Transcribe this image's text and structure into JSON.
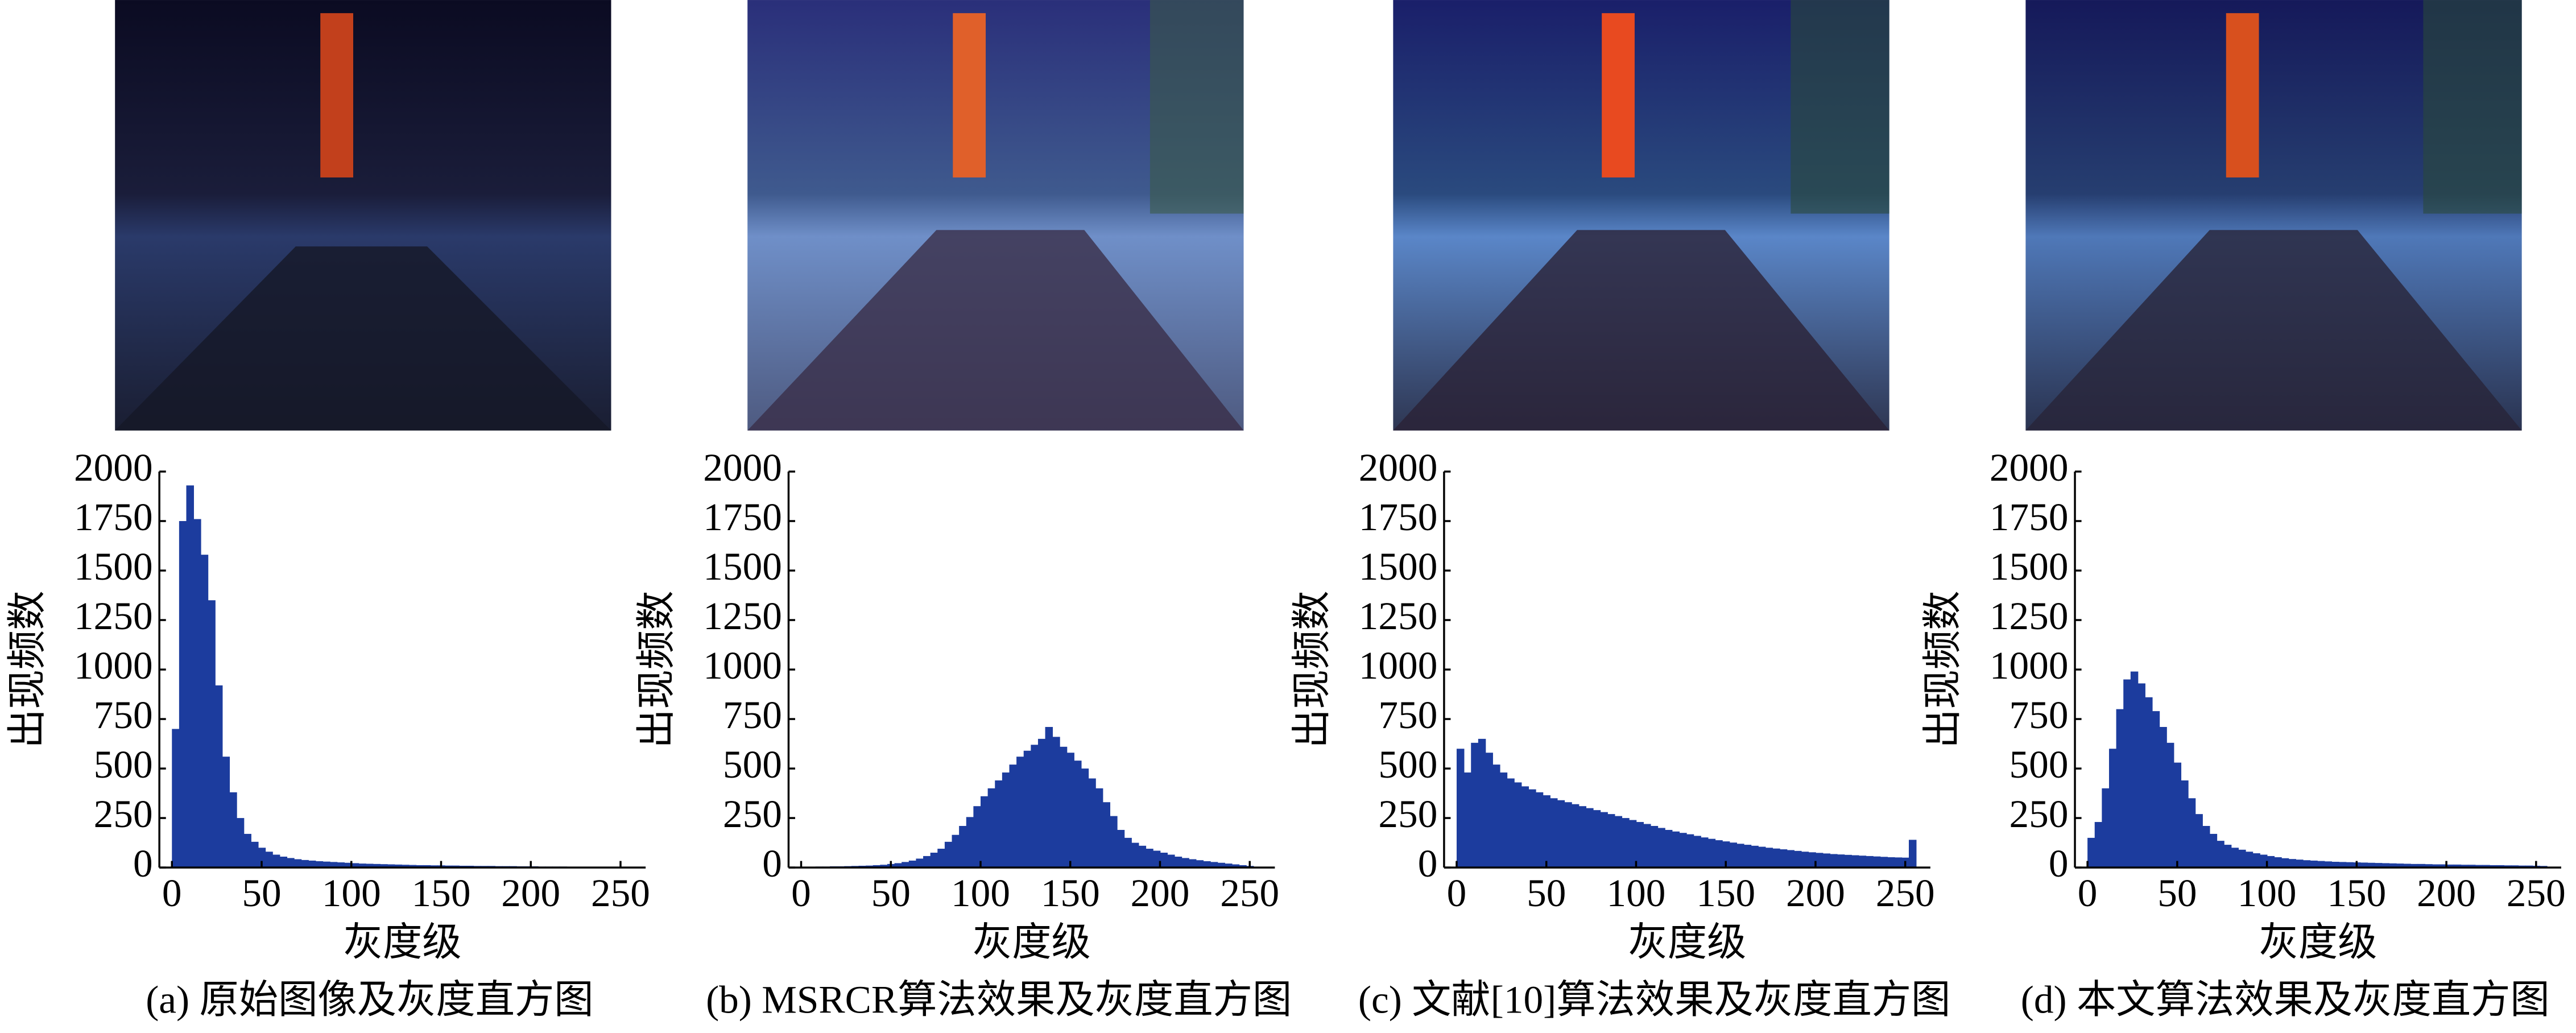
{
  "chart_data": [
    {
      "type": "histogram",
      "color": "#1c3c9e",
      "ylabel": "出现频数",
      "xlabel": "灰度级",
      "caption": "(a) 原始图像及灰度直方图",
      "bins": [
        0,
        4,
        8,
        12,
        16,
        20,
        24,
        28,
        32,
        36,
        40,
        44,
        48,
        52,
        56,
        60,
        64,
        68,
        72,
        76,
        80,
        84,
        88,
        92,
        96,
        100,
        104,
        108,
        112,
        116,
        120,
        124,
        128,
        132,
        136,
        140,
        144,
        148,
        152,
        156,
        160,
        164,
        168,
        172,
        176,
        180,
        184,
        188,
        192,
        196,
        200,
        204,
        208,
        212,
        216,
        220,
        224,
        228,
        232,
        236,
        240,
        244,
        248,
        252,
        256
      ],
      "values": [
        700,
        1750,
        1930,
        1760,
        1580,
        1350,
        920,
        560,
        380,
        250,
        170,
        130,
        100,
        80,
        65,
        55,
        48,
        42,
        38,
        35,
        32,
        30,
        28,
        26,
        24,
        22,
        20,
        19,
        18,
        17,
        16,
        15,
        14,
        13,
        12,
        12,
        11,
        11,
        10,
        10,
        9,
        9,
        8,
        8,
        8,
        7,
        7,
        7,
        6,
        6,
        6,
        5,
        5,
        5,
        5,
        4,
        4,
        4,
        4,
        3,
        3,
        3,
        3,
        3
      ],
      "xlim": [
        -7,
        264
      ],
      "ylim": [
        0,
        2000
      ],
      "xticks": [
        0,
        50,
        100,
        150,
        200,
        250
      ],
      "yticks": [
        0,
        250,
        500,
        750,
        1000,
        1250,
        1500,
        1750,
        2000
      ]
    },
    {
      "type": "histogram",
      "color": "#1c3c9e",
      "ylabel": "出现频数",
      "xlabel": "灰度级",
      "caption": "(b) MSRCR算法效果及灰度直方图",
      "bins": [
        0,
        4,
        8,
        12,
        16,
        20,
        24,
        28,
        32,
        36,
        40,
        44,
        48,
        52,
        56,
        60,
        64,
        68,
        72,
        76,
        80,
        84,
        88,
        92,
        96,
        100,
        104,
        108,
        112,
        116,
        120,
        124,
        128,
        132,
        136,
        140,
        144,
        148,
        152,
        156,
        160,
        164,
        168,
        172,
        176,
        180,
        184,
        188,
        192,
        196,
        200,
        204,
        208,
        212,
        216,
        220,
        224,
        228,
        232,
        236,
        240,
        244,
        248,
        252,
        256
      ],
      "values": [
        3,
        4,
        5,
        5,
        6,
        6,
        7,
        8,
        9,
        10,
        12,
        14,
        18,
        22,
        28,
        35,
        45,
        58,
        75,
        95,
        130,
        165,
        210,
        255,
        310,
        360,
        400,
        440,
        480,
        520,
        560,
        590,
        620,
        650,
        710,
        660,
        610,
        580,
        540,
        500,
        450,
        400,
        330,
        260,
        190,
        150,
        125,
        110,
        95,
        85,
        75,
        65,
        55,
        48,
        42,
        37,
        32,
        28,
        24,
        20,
        16,
        12,
        8,
        4
      ],
      "xlim": [
        -7,
        264
      ],
      "ylim": [
        0,
        2000
      ],
      "xticks": [
        0,
        50,
        100,
        150,
        200,
        250
      ],
      "yticks": [
        0,
        250,
        500,
        750,
        1000,
        1250,
        1500,
        1750,
        2000
      ]
    },
    {
      "type": "histogram",
      "color": "#1c3c9e",
      "ylabel": "出现频数",
      "xlabel": "灰度级",
      "caption": "(c) 文献[10]算法效果及灰度直方图",
      "bins": [
        0,
        4,
        8,
        12,
        16,
        20,
        24,
        28,
        32,
        36,
        40,
        44,
        48,
        52,
        56,
        60,
        64,
        68,
        72,
        76,
        80,
        84,
        88,
        92,
        96,
        100,
        104,
        108,
        112,
        116,
        120,
        124,
        128,
        132,
        136,
        140,
        144,
        148,
        152,
        156,
        160,
        164,
        168,
        172,
        176,
        180,
        184,
        188,
        192,
        196,
        200,
        204,
        208,
        212,
        216,
        220,
        224,
        228,
        232,
        236,
        240,
        244,
        248,
        252,
        256
      ],
      "values": [
        600,
        480,
        630,
        650,
        580,
        520,
        480,
        450,
        430,
        410,
        395,
        380,
        365,
        350,
        340,
        330,
        320,
        310,
        300,
        290,
        280,
        270,
        260,
        250,
        240,
        230,
        220,
        210,
        200,
        190,
        182,
        175,
        168,
        160,
        152,
        145,
        138,
        132,
        126,
        120,
        115,
        110,
        105,
        100,
        96,
        92,
        88,
        84,
        80,
        77,
        74,
        71,
        68,
        66,
        64,
        62,
        60,
        58,
        56,
        54,
        52,
        51,
        50,
        140
      ],
      "xlim": [
        -7,
        264
      ],
      "ylim": [
        0,
        2000
      ],
      "xticks": [
        0,
        50,
        100,
        150,
        200,
        250
      ],
      "yticks": [
        0,
        250,
        500,
        750,
        1000,
        1250,
        1500,
        1750,
        2000
      ]
    },
    {
      "type": "histogram",
      "color": "#1c3c9e",
      "ylabel": "出现频数",
      "xlabel": "灰度级",
      "caption": "(d) 本文算法效果及灰度直方图",
      "bins": [
        0,
        4,
        8,
        12,
        16,
        20,
        24,
        28,
        32,
        36,
        40,
        44,
        48,
        52,
        56,
        60,
        64,
        68,
        72,
        76,
        80,
        84,
        88,
        92,
        96,
        100,
        104,
        108,
        112,
        116,
        120,
        124,
        128,
        132,
        136,
        140,
        144,
        148,
        152,
        156,
        160,
        164,
        168,
        172,
        176,
        180,
        184,
        188,
        192,
        196,
        200,
        204,
        208,
        212,
        216,
        220,
        224,
        228,
        232,
        236,
        240,
        244,
        248,
        252,
        256
      ],
      "values": [
        150,
        230,
        400,
        600,
        800,
        950,
        990,
        930,
        860,
        790,
        710,
        630,
        530,
        440,
        350,
        270,
        210,
        170,
        135,
        115,
        100,
        90,
        80,
        72,
        65,
        58,
        52,
        47,
        43,
        40,
        37,
        35,
        33,
        31,
        29,
        28,
        27,
        26,
        25,
        24,
        23,
        22,
        21,
        20,
        19,
        18,
        18,
        17,
        16,
        16,
        15,
        15,
        14,
        14,
        13,
        13,
        12,
        12,
        11,
        11,
        10,
        10,
        9,
        8
      ],
      "xlim": [
        -7,
        264
      ],
      "ylim": [
        0,
        2000
      ],
      "xticks": [
        0,
        50,
        100,
        150,
        200,
        250
      ],
      "yticks": [
        0,
        250,
        500,
        750,
        1000,
        1250,
        1500,
        1750,
        2000
      ]
    }
  ]
}
